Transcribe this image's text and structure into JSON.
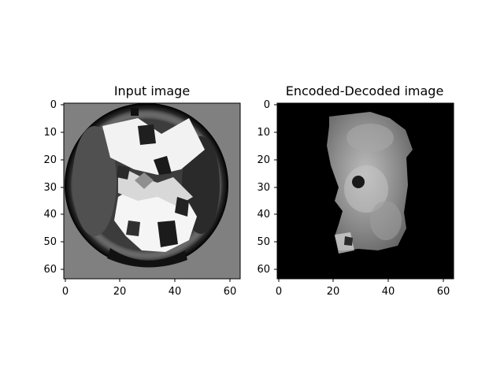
{
  "figure": {
    "left_panel": {
      "title": "Input image",
      "x_ticks": [
        "0",
        "20",
        "40",
        "60"
      ],
      "y_ticks": [
        "0",
        "10",
        "20",
        "30",
        "40",
        "50",
        "60"
      ]
    },
    "right_panel": {
      "title": "Encoded-Decoded image",
      "x_ticks": [
        "0",
        "20",
        "40",
        "60"
      ],
      "y_ticks": [
        "0",
        "10",
        "20",
        "30",
        "40",
        "50",
        "60"
      ]
    }
  }
}
